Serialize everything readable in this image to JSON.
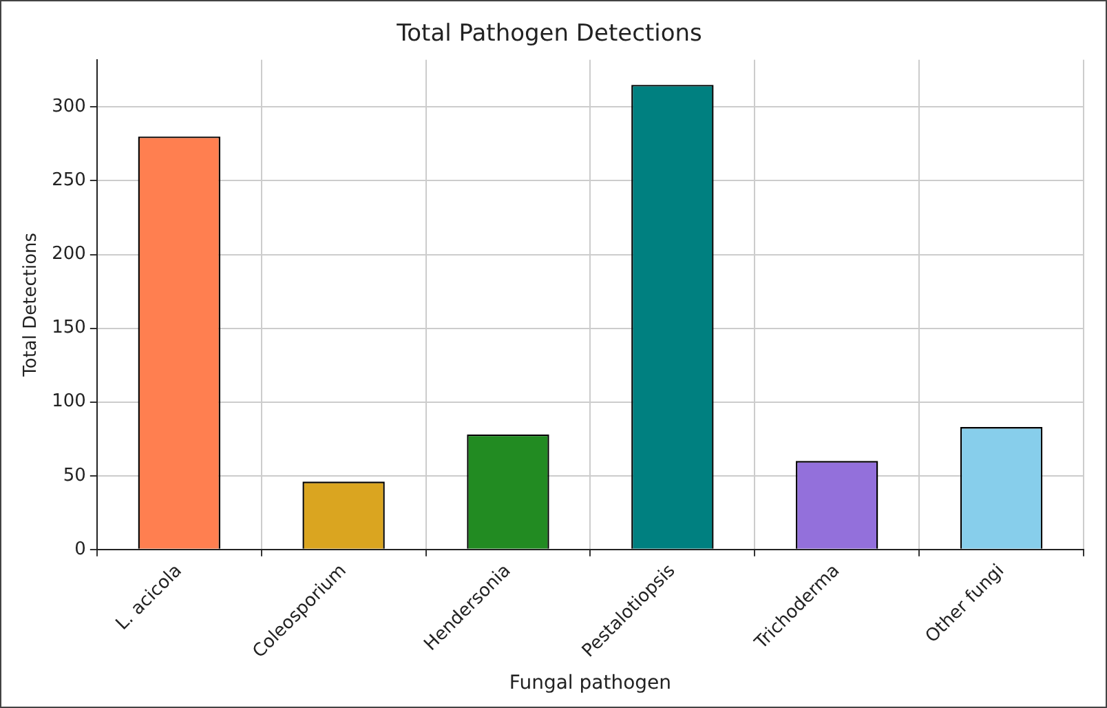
{
  "chart_data": {
    "type": "bar",
    "title": "Total Pathogen Detections",
    "xlabel": "Fungal pathogen",
    "ylabel": "Total Detections",
    "categories": [
      "L. acicola",
      "Coleosporium",
      "Hendersonia",
      "Pestalotiopsis",
      "Trichoderma",
      "Other fungi"
    ],
    "values": [
      280,
      46,
      78,
      315,
      60,
      83
    ],
    "colors": [
      "#ff7f50",
      "#daa520",
      "#228b22",
      "#008080",
      "#9370db",
      "#87ceeb"
    ],
    "ylim": [
      0,
      332
    ],
    "yticks": [
      0,
      50,
      100,
      150,
      200,
      250,
      300
    ],
    "grid": true
  }
}
